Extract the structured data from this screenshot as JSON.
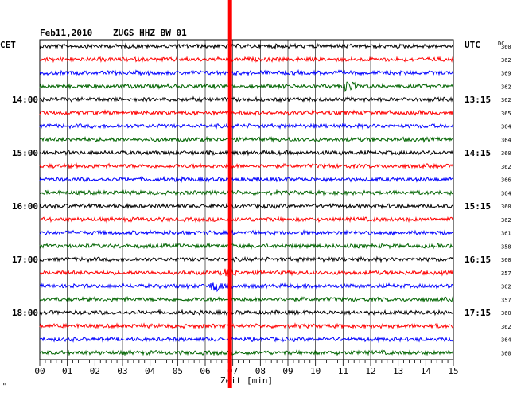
{
  "header": {
    "date": "Feb11,2010",
    "station": "ZUGS HHZ BW 01",
    "left_zone": "CET",
    "right_zone": "UTC",
    "dc_label": "DC",
    "corner_mark": "\""
  },
  "chart_data": {
    "type": "line",
    "title": "Feb11,2010    ZUGS HHZ BW 01",
    "xlabel": "Zeit [min]",
    "xlim": [
      0,
      15
    ],
    "x_tick_labels": [
      "00",
      "01",
      "02",
      "03",
      "04",
      "05",
      "06",
      "07",
      "08",
      "09",
      "10",
      "11",
      "12",
      "13",
      "14",
      "15"
    ],
    "left_hour_labels": [
      {
        "trace": 4,
        "label": "14:00"
      },
      {
        "trace": 8,
        "label": "15:00"
      },
      {
        "trace": 12,
        "label": "16:00"
      },
      {
        "trace": 16,
        "label": "17:00"
      },
      {
        "trace": 20,
        "label": "18:00"
      }
    ],
    "right_hour_labels": [
      {
        "trace": 4,
        "label": "13:15"
      },
      {
        "trace": 8,
        "label": "14:15"
      },
      {
        "trace": 12,
        "label": "15:15"
      },
      {
        "trace": 16,
        "label": "16:15"
      },
      {
        "trace": 20,
        "label": "17:15"
      }
    ],
    "trace_colors": [
      "#000000",
      "#ff0000",
      "#0000ff",
      "#006400"
    ],
    "dc_values": [
      "360",
      "362",
      "369",
      "362",
      "362",
      "365",
      "364",
      "364",
      "360",
      "362",
      "366",
      "364",
      "360",
      "362",
      "361",
      "358",
      "360",
      "357",
      "362",
      "357",
      "360",
      "362",
      "364",
      "360"
    ],
    "marker": {
      "minute": 6.9,
      "color": "#ff0000"
    },
    "events": [
      {
        "trace": 3,
        "minute": 11.2,
        "color": "#006400"
      },
      {
        "trace": 17,
        "minute": 6.9,
        "color": "#ff0000"
      },
      {
        "trace": 18,
        "minute": 6.4,
        "color": "#0000ff"
      }
    ]
  }
}
